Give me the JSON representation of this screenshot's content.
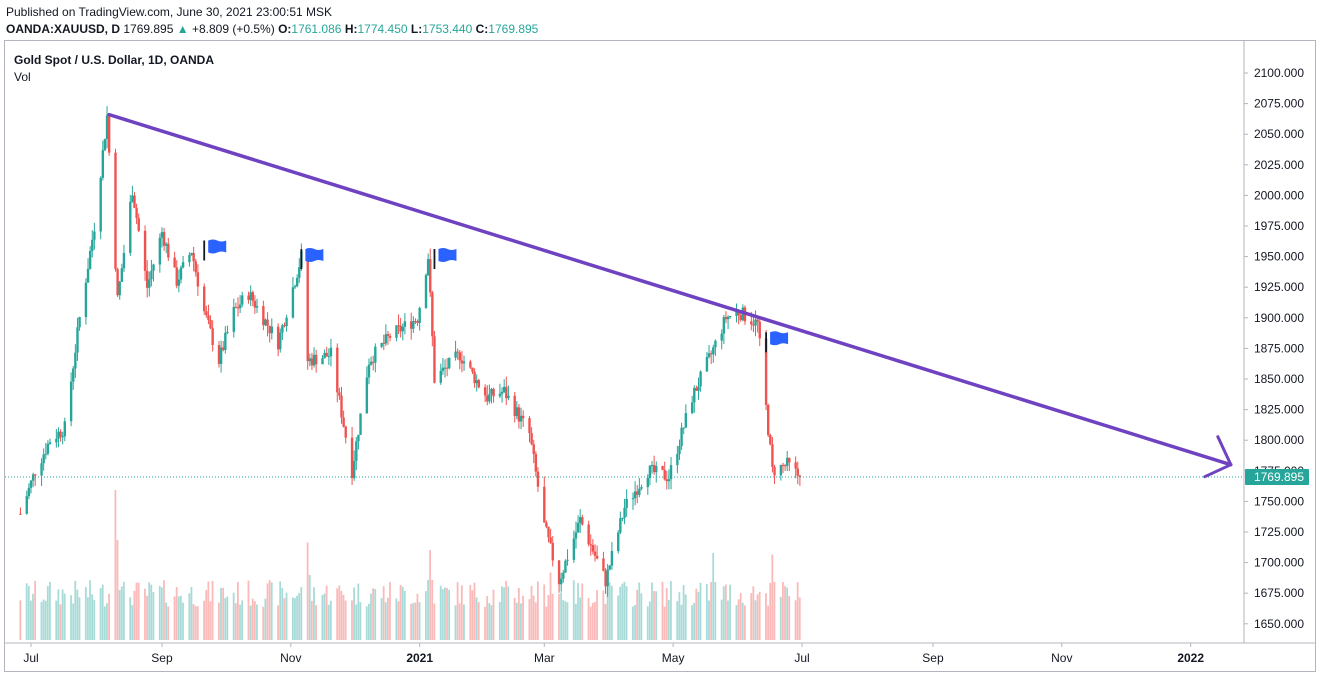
{
  "header": {
    "published": "Published on TradingView.com, June 30, 2021 23:00:51 MSK",
    "symbol": "OANDA:XAUUSD, D",
    "last": "1769.895",
    "change": "+8.809 (+0.5%)",
    "o_label": "O:",
    "o_val": "1761.086",
    "h_label": "H:",
    "h_val": "1774.450",
    "l_label": "L:",
    "l_val": "1753.440",
    "c_label": "C:",
    "c_val": "1769.895"
  },
  "legend": {
    "title": "Gold Spot / U.S. Dollar, 1D, OANDA",
    "volume_label": "Vol"
  },
  "colors": {
    "up": "#26a69a",
    "down": "#ef5350",
    "trendline": "#6f42c1",
    "flag": "#2962ff",
    "price_tag": "#26a69a"
  },
  "chart_data": {
    "type": "candlestick",
    "instrument": "Gold Spot / U.S. Dollar",
    "timeframe": "1D",
    "ylim": [
      1635,
      2105
    ],
    "y_ticks": [
      2100,
      2075,
      2050,
      2025,
      2000,
      1975,
      1950,
      1925,
      1900,
      1875,
      1850,
      1825,
      1800,
      1775,
      1750,
      1725,
      1700,
      1675,
      1650
    ],
    "y_tick_labels": [
      "2100.000",
      "2075.000",
      "2050.000",
      "2025.000",
      "2000.000",
      "1975.000",
      "1950.000",
      "1925.000",
      "1900.000",
      "1875.000",
      "1850.000",
      "1825.000",
      "1800.000",
      "1775.000",
      "1750.000",
      "1725.000",
      "1700.000",
      "1675.000",
      "1650.000"
    ],
    "x_ticks": [
      {
        "label": "Jul",
        "date": "2020-07-01"
      },
      {
        "label": "Sep",
        "date": "2020-09-01"
      },
      {
        "label": "Nov",
        "date": "2020-11-01"
      },
      {
        "label": "2021",
        "date": "2021-01-01"
      },
      {
        "label": "Mar",
        "date": "2021-03-01"
      },
      {
        "label": "May",
        "date": "2021-05-01"
      },
      {
        "label": "Jul",
        "date": "2021-07-01"
      },
      {
        "label": "Sep",
        "date": "2021-09-01"
      },
      {
        "label": "Nov",
        "date": "2021-11-01"
      },
      {
        "label": "2022",
        "date": "2022-01-01"
      }
    ],
    "last_price": 1769.895,
    "last_price_label": "1769.895",
    "price_path": [
      [
        "2020-06-26",
        1740
      ],
      [
        "2020-07-03",
        1775
      ],
      [
        "2020-07-10",
        1800
      ],
      [
        "2020-07-17",
        1810
      ],
      [
        "2020-07-24",
        1900
      ],
      [
        "2020-07-31",
        1975
      ],
      [
        "2020-08-06",
        2065
      ],
      [
        "2020-08-11",
        1915
      ],
      [
        "2020-08-18",
        2005
      ],
      [
        "2020-08-25",
        1925
      ],
      [
        "2020-09-01",
        1970
      ],
      [
        "2020-09-08",
        1930
      ],
      [
        "2020-09-15",
        1955
      ],
      [
        "2020-09-21",
        1905
      ],
      [
        "2020-09-28",
        1865
      ],
      [
        "2020-10-05",
        1905
      ],
      [
        "2020-10-12",
        1920
      ],
      [
        "2020-10-19",
        1900
      ],
      [
        "2020-10-26",
        1880
      ],
      [
        "2020-11-06",
        1950
      ],
      [
        "2020-11-09",
        1865
      ],
      [
        "2020-11-20",
        1870
      ],
      [
        "2020-11-30",
        1775
      ],
      [
        "2020-12-08",
        1865
      ],
      [
        "2020-12-18",
        1885
      ],
      [
        "2020-12-31",
        1900
      ],
      [
        "2021-01-05",
        1950
      ],
      [
        "2021-01-08",
        1850
      ],
      [
        "2021-01-20",
        1870
      ],
      [
        "2021-02-02",
        1835
      ],
      [
        "2021-02-10",
        1840
      ],
      [
        "2021-02-22",
        1805
      ],
      [
        "2021-03-01",
        1730
      ],
      [
        "2021-03-08",
        1685
      ],
      [
        "2021-03-18",
        1735
      ],
      [
        "2021-03-30",
        1685
      ],
      [
        "2021-04-08",
        1745
      ],
      [
        "2021-04-19",
        1775
      ],
      [
        "2021-04-29",
        1770
      ],
      [
        "2021-05-10",
        1835
      ],
      [
        "2021-05-19",
        1870
      ],
      [
        "2021-05-26",
        1900
      ],
      [
        "2021-06-01",
        1905
      ],
      [
        "2021-06-10",
        1895
      ],
      [
        "2021-06-17",
        1775
      ],
      [
        "2021-06-24",
        1780
      ],
      [
        "2021-06-30",
        1769.895
      ]
    ],
    "volume_peaks": [
      {
        "date": "2020-08-10",
        "rel": 1.0
      },
      {
        "date": "2020-11-09",
        "rel": 0.65
      },
      {
        "date": "2021-01-06",
        "rel": 0.6
      },
      {
        "date": "2021-03-04",
        "rel": 0.45
      },
      {
        "date": "2021-05-20",
        "rel": 0.58
      },
      {
        "date": "2021-06-17",
        "rel": 0.57
      }
    ],
    "flags": [
      {
        "date": "2020-09-21",
        "price": 1955
      },
      {
        "date": "2020-11-06",
        "price": 1948
      },
      {
        "date": "2021-01-08",
        "price": 1948
      },
      {
        "date": "2021-06-14",
        "price": 1880
      }
    ],
    "trendline": {
      "start": {
        "date": "2020-08-07",
        "price": 2066
      },
      "end": {
        "date": "2022-01-20",
        "price": 1780
      },
      "arrow": true
    }
  }
}
